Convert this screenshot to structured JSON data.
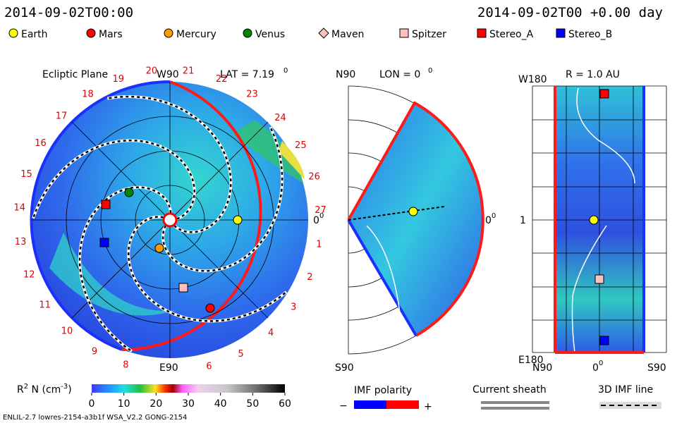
{
  "header": {
    "left": "2014-09-02T00:00",
    "right": "2014-09-02T00 +0.00 day"
  },
  "legend": [
    {
      "label": "Earth",
      "color": "#ffff00"
    },
    {
      "label": "Mars",
      "color": "#ff0000"
    },
    {
      "label": "Mercury",
      "color": "#ff9900"
    },
    {
      "label": "Venus",
      "color": "#008800"
    },
    {
      "label": "Maven",
      "color": "#ffc0c0"
    },
    {
      "label": "Spitzer",
      "color": "#ffc0c0"
    },
    {
      "label": "Stereo_A",
      "color": "#ff0000"
    },
    {
      "label": "Stereo_B",
      "color": "#0000ff"
    }
  ],
  "ecliptic": {
    "title": "Ecliptic Plane",
    "top": "W90",
    "lat": "LAT = 7.19",
    "lat_sup": "0",
    "bottom": "E90",
    "right": "0",
    "right_sup": "0",
    "sectors": [
      19,
      20,
      21,
      22,
      23,
      24,
      25,
      26,
      27,
      1,
      2,
      3,
      4,
      5,
      6,
      8,
      9,
      10,
      11,
      12,
      13,
      14,
      15,
      16,
      17,
      18
    ]
  },
  "meridional": {
    "top": "N90",
    "lon": "LON = 0",
    "lon_sup": "0",
    "bottom": "S90",
    "right": "0",
    "right_sup": "0"
  },
  "radial": {
    "title": "R = 1.0 AU",
    "top": "W180",
    "mid": "1",
    "bottom": "E180",
    "x_left": "N90",
    "x_mid": "0",
    "x_mid_sup": "0",
    "x_right": "S90"
  },
  "colorbar": {
    "label_r": "R",
    "label_sup": "2",
    "label_mid": " N (cm",
    "label_exp": "-3",
    "label_end": ")",
    "range": [
      0,
      60
    ],
    "ticks": [
      0,
      10,
      20,
      30,
      40,
      50,
      60
    ]
  },
  "keys": {
    "imf": "IMF polarity",
    "minus": "−",
    "plus": "+",
    "sheath": "Current sheath",
    "imf3d": "3D IMF line"
  },
  "footer": "ENLIL-2.7 lowres-2154-a3b1f WSA_V2.2 GONG-2154"
}
